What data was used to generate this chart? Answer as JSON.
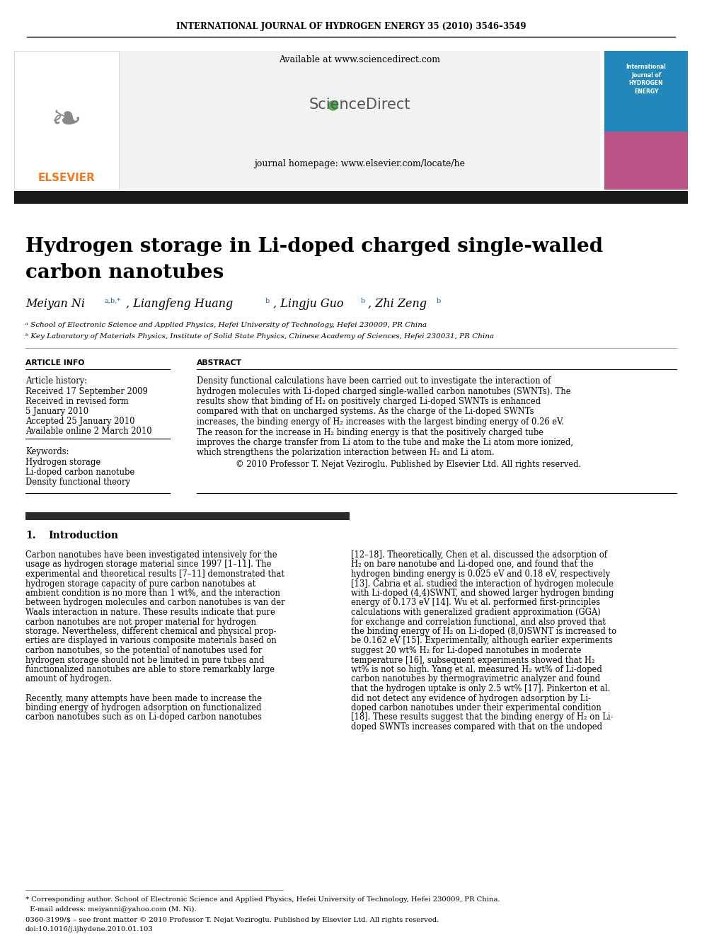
{
  "journal_header": "INTERNATIONAL JOURNAL OF HYDROGEN ENERGY 35 (2010) 3546–3549",
  "available_at": "Available at www.sciencedirect.com",
  "journal_homepage": "journal homepage: www.elsevier.com/locate/he",
  "paper_title_line1": "Hydrogen storage in Li-doped charged single-walled",
  "paper_title_line2": "carbon nanotubes",
  "affil_a": "ᵃ School of Electronic Science and Applied Physics, Hefei University of Technology, Hefei 230009, PR China",
  "affil_b": "ᵇ Key Laboratory of Materials Physics, Institute of Solid State Physics, Chinese Academy of Sciences, Hefei 230031, PR China",
  "article_info_title": "ARTICLE INFO",
  "abstract_title": "ABSTRACT",
  "article_history_label": "Article history:",
  "received1": "Received 17 September 2009",
  "received2": "Received in revised form",
  "received2b": "5 January 2010",
  "accepted": "Accepted 25 January 2010",
  "available_online": "Available online 2 March 2010",
  "keywords_label": "Keywords:",
  "keyword1": "Hydrogen storage",
  "keyword2": "Li-doped carbon nanotube",
  "keyword3": "Density functional theory",
  "copyright": "© 2010 Professor T. Nejat Veziroglu. Published by Elsevier Ltd. All rights reserved.",
  "section1_num": "1.",
  "section1_title": "Introduction",
  "footnote_star": "* Corresponding author. School of Electronic Science and Applied Physics, Hefei University of Technology, Hefei 230009, PR China.",
  "footnote_email": "  E-mail address: meiyanni@yahoo.com (M. Ni).",
  "footnote_issn": "0360-3199/$ – see front matter © 2010 Professor T. Nejat Veziroglu. Published by Elsevier Ltd. All rights reserved.",
  "footnote_doi": "doi:10.1016/j.ijhydene.2010.01.103",
  "bg_color": "#ffffff",
  "dark_bar_color": "#1a1a1a",
  "elsevier_orange": "#f47920",
  "link_blue": "#1a5fa8",
  "text_color": "#000000",
  "section_bar_color": "#2a2a2a",
  "abstract_lines": [
    "Density functional calculations have been carried out to investigate the interaction of",
    "hydrogen molecules with Li-doped charged single-walled carbon nanotubes (SWNTs). The",
    "results show that binding of H₂ on positively charged Li-doped SWNTs is enhanced",
    "compared with that on uncharged systems. As the charge of the Li-doped SWNTs",
    "increases, the binding energy of H₂ increases with the largest binding energy of 0.26 eV.",
    "The reason for the increase in H₂ binding energy is that the positively charged tube",
    "improves the charge transfer from Li atom to the tube and make the Li atom more ionized,",
    "which strengthens the polarization interaction between H₂ and Li atom."
  ],
  "intro_left_lines": [
    "Carbon nanotubes have been investigated intensively for the",
    "usage as hydrogen storage material since 1997 [1–11]. The",
    "experimental and theoretical results [7–11] demonstrated that",
    "hydrogen storage capacity of pure carbon nanotubes at",
    "ambient condition is no more than 1 wt%, and the interaction",
    "between hydrogen molecules and carbon nanotubes is van der",
    "Waals interaction in nature. These results indicate that pure",
    "carbon nanotubes are not proper material for hydrogen",
    "storage. Nevertheless, different chemical and physical prop-",
    "erties are displayed in various composite materials based on",
    "carbon nanotubes, so the potential of nanotubes used for",
    "hydrogen storage should not be limited in pure tubes and",
    "functionalized nanotubes are able to store remarkably large",
    "amount of hydrogen.",
    "",
    "Recently, many attempts have been made to increase the",
    "binding energy of hydrogen adsorption on functionalized",
    "carbon nanotubes such as on Li-doped carbon nanotubes"
  ],
  "intro_right_lines": [
    "[12–18]. Theoretically, Chen et al. discussed the adsorption of",
    "H₂ on bare nanotube and Li-doped one, and found that the",
    "hydrogen binding energy is 0.025 eV and 0.18 eV, respectively",
    "[13]. Cabria et al. studied the interaction of hydrogen molecule",
    "with Li-doped (4,4)SWNT, and showed larger hydrogen binding",
    "energy of 0.173 eV [14]. Wu et al. performed first-principles",
    "calculations with generalized gradient approximation (GGA)",
    "for exchange and correlation functional, and also proved that",
    "the binding energy of H₂ on Li-doped (8,0)SWNT is increased to",
    "be 0.162 eV [15]. Experimentally, although earlier experiments",
    "suggest 20 wt% H₂ for Li-doped nanotubes in moderate",
    "temperature [16], subsequent experiments showed that H₂",
    "wt% is not so high. Yang et al. measured H₂ wt% of Li-doped",
    "carbon nanotubes by thermogravimetric analyzer and found",
    "that the hydrogen uptake is only 2.5 wt% [17]. Pinkerton et al.",
    "did not detect any evidence of hydrogen adsorption by Li-",
    "doped carbon nanotubes under their experimental condition",
    "[18]. These results suggest that the binding energy of H₂ on Li-",
    "doped SWNTs increases compared with that on the undoped"
  ]
}
